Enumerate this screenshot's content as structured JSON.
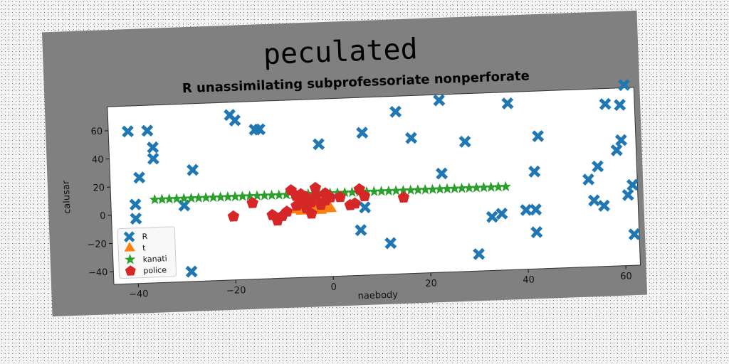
{
  "chart_data": {
    "type": "scatter",
    "suptitle": "peculated",
    "title": "R unassimilating subprofessoriate nonperforate",
    "xlabel": "naebody",
    "ylabel": "calusar",
    "xlim": [
      -45,
      63
    ],
    "ylim": [
      -49,
      77
    ],
    "xticks": [
      -40,
      -20,
      0,
      20,
      40,
      60
    ],
    "yticks": [
      -40,
      -20,
      0,
      20,
      40,
      60
    ],
    "legend_position": "lower-left",
    "series": [
      {
        "name": "R",
        "marker": "x",
        "color": "#1f77b4",
        "points": [
          [
            -41,
            59
          ],
          [
            -37,
            59
          ],
          [
            -36,
            47
          ],
          [
            -36,
            39
          ],
          [
            -39,
            26
          ],
          [
            -40,
            7
          ],
          [
            -40,
            -3
          ],
          [
            -28,
            30
          ],
          [
            -30,
            5
          ],
          [
            -29,
            -42
          ],
          [
            -20,
            68
          ],
          [
            -19,
            64
          ],
          [
            -15,
            57
          ],
          [
            -14,
            57
          ],
          [
            -2,
            45
          ],
          [
            7,
            52
          ],
          [
            14,
            66
          ],
          [
            17,
            47
          ],
          [
            23,
            73
          ],
          [
            28,
            43
          ],
          [
            37,
            69
          ],
          [
            43,
            45
          ],
          [
            42,
            20
          ],
          [
            23,
            21
          ],
          [
            7,
            -1
          ],
          [
            6,
            -17
          ],
          [
            12,
            -27
          ],
          [
            30,
            -37
          ],
          [
            33,
            -11
          ],
          [
            35,
            -9
          ],
          [
            40,
            -7
          ],
          [
            42,
            -7
          ],
          [
            42,
            -23
          ],
          [
            53,
            13
          ],
          [
            54,
            -2
          ],
          [
            55,
            22
          ],
          [
            57,
            66
          ],
          [
            56,
            -6
          ],
          [
            59,
            33
          ],
          [
            60,
            65
          ],
          [
            60,
            40
          ],
          [
            61,
            1
          ],
          [
            62,
            8
          ],
          [
            62,
            -27
          ],
          [
            61,
            79
          ]
        ]
      },
      {
        "name": "t",
        "marker": "triangle",
        "color": "#ff7f0e",
        "points": [
          [
            -7,
            -1
          ],
          [
            -6,
            1
          ],
          [
            -5,
            -1
          ],
          [
            -4,
            0
          ],
          [
            -3,
            -1
          ],
          [
            -2,
            0
          ],
          [
            -1,
            -1
          ],
          [
            -6,
            -2
          ],
          [
            -5,
            2
          ],
          [
            -4,
            -2
          ],
          [
            -3,
            1
          ],
          [
            -2,
            -2
          ],
          [
            -1,
            1
          ],
          [
            0,
            -1
          ]
        ]
      },
      {
        "name": "kanati",
        "marker": "star",
        "color": "#2ca02c",
        "points": [
          [
            -36,
            10
          ],
          [
            -34.5,
            10
          ],
          [
            -33,
            10
          ],
          [
            -31.5,
            10
          ],
          [
            -30,
            10
          ],
          [
            -28.5,
            10
          ],
          [
            -27,
            10
          ],
          [
            -25.5,
            10
          ],
          [
            -24,
            10
          ],
          [
            -22.5,
            10
          ],
          [
            -21,
            10
          ],
          [
            -19.5,
            10
          ],
          [
            -18,
            10
          ],
          [
            -16.5,
            10
          ],
          [
            -15,
            10
          ],
          [
            -13.5,
            10
          ],
          [
            -12,
            10
          ],
          [
            -10.5,
            10
          ],
          [
            -9,
            10
          ],
          [
            -7.5,
            10
          ],
          [
            -6,
            10
          ],
          [
            -4.5,
            10
          ],
          [
            -3,
            10
          ],
          [
            -1.5,
            10
          ],
          [
            0,
            10
          ],
          [
            1.5,
            10
          ],
          [
            3,
            10
          ],
          [
            4.5,
            10
          ],
          [
            6,
            10
          ],
          [
            7.5,
            10
          ],
          [
            9,
            10
          ],
          [
            10.5,
            10
          ],
          [
            12,
            10
          ],
          [
            13.5,
            10
          ],
          [
            15,
            10
          ],
          [
            16.5,
            10
          ],
          [
            18,
            10
          ],
          [
            19.5,
            10
          ],
          [
            21,
            10
          ],
          [
            22.5,
            10
          ],
          [
            24,
            10
          ],
          [
            25.5,
            10
          ],
          [
            27,
            10
          ],
          [
            28.5,
            10
          ],
          [
            30,
            10
          ],
          [
            31.5,
            10
          ],
          [
            33,
            10
          ],
          [
            34.5,
            10
          ],
          [
            36,
            10
          ]
        ]
      },
      {
        "name": "police",
        "marker": "pentagon",
        "color": "#d62728",
        "points": [
          [
            -8,
            13
          ],
          [
            -7,
            9
          ],
          [
            -6,
            6
          ],
          [
            -5,
            8
          ],
          [
            -4,
            4
          ],
          [
            -3,
            14
          ],
          [
            -3,
            8
          ],
          [
            -2,
            2
          ],
          [
            -1,
            5
          ],
          [
            0,
            7
          ],
          [
            -5,
            0
          ],
          [
            -7,
            2
          ],
          [
            -9,
            -2
          ],
          [
            -10,
            -5
          ],
          [
            -11,
            -8
          ],
          [
            -12,
            -4
          ],
          [
            -16,
            5
          ],
          [
            -20,
            -4
          ],
          [
            2,
            7
          ],
          [
            4,
            1
          ],
          [
            5,
            2
          ],
          [
            6,
            12
          ],
          [
            7,
            7
          ],
          [
            15,
            5
          ],
          [
            -4,
            -4
          ],
          [
            -6,
            10
          ],
          [
            -1,
            10
          ]
        ]
      }
    ]
  }
}
